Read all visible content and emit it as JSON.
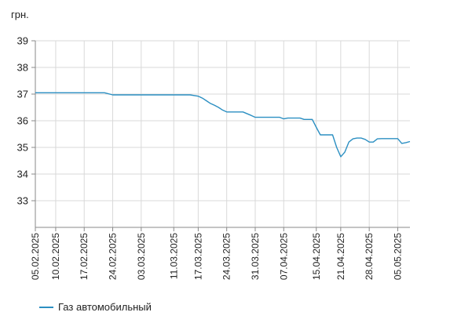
{
  "chart_data": {
    "type": "line",
    "ylabel": "грн.",
    "ylim": [
      32,
      39
    ],
    "yticks": [
      33,
      34,
      35,
      36,
      37,
      38,
      39
    ],
    "grid": true,
    "legend_position": "bottom-left",
    "series_color": "#2b8fc2",
    "x_tick_labels": [
      "05.02.2025",
      "10.02.2025",
      "17.02.2025",
      "24.02.2025",
      "03.03.2025",
      "11.03.2025",
      "17.03.2025",
      "24.03.2025",
      "31.03.2025",
      "07.04.2025",
      "15.04.2025",
      "21.04.2025",
      "28.04.2025",
      "05.05.2025"
    ],
    "series": [
      {
        "name": "Газ автомобильный",
        "points": [
          [
            "05.02.2025",
            37.05
          ],
          [
            "08.02.2025",
            37.05
          ],
          [
            "12.02.2025",
            37.05
          ],
          [
            "16.02.2025",
            37.05
          ],
          [
            "20.02.2025",
            37.05
          ],
          [
            "22.02.2025",
            37.05
          ],
          [
            "24.02.2025",
            36.97
          ],
          [
            "28.02.2025",
            36.97
          ],
          [
            "03.03.2025",
            36.97
          ],
          [
            "07.03.2025",
            36.97
          ],
          [
            "11.03.2025",
            36.97
          ],
          [
            "15.03.2025",
            36.97
          ],
          [
            "17.03.2025",
            36.92
          ],
          [
            "18.03.2025",
            36.85
          ],
          [
            "19.03.2025",
            36.75
          ],
          [
            "20.03.2025",
            36.65
          ],
          [
            "21.03.2025",
            36.58
          ],
          [
            "22.03.2025",
            36.5
          ],
          [
            "23.03.2025",
            36.4
          ],
          [
            "24.03.2025",
            36.33
          ],
          [
            "26.03.2025",
            36.33
          ],
          [
            "28.03.2025",
            36.33
          ],
          [
            "30.03.2025",
            36.2
          ],
          [
            "31.03.2025",
            36.13
          ],
          [
            "03.04.2025",
            36.13
          ],
          [
            "06.04.2025",
            36.13
          ],
          [
            "07.04.2025",
            36.07
          ],
          [
            "08.04.2025",
            36.1
          ],
          [
            "11.04.2025",
            36.1
          ],
          [
            "12.04.2025",
            36.05
          ],
          [
            "14.04.2025",
            36.05
          ],
          [
            "15.04.2025",
            35.75
          ],
          [
            "16.04.2025",
            35.47
          ],
          [
            "18.04.2025",
            35.47
          ],
          [
            "19.04.2025",
            35.47
          ],
          [
            "20.04.2025",
            35.0
          ],
          [
            "21.04.2025",
            34.65
          ],
          [
            "22.04.2025",
            34.82
          ],
          [
            "23.04.2025",
            35.2
          ],
          [
            "24.04.2025",
            35.32
          ],
          [
            "25.04.2025",
            35.35
          ],
          [
            "26.04.2025",
            35.35
          ],
          [
            "27.04.2025",
            35.3
          ],
          [
            "28.04.2025",
            35.2
          ],
          [
            "29.04.2025",
            35.2
          ],
          [
            "30.04.2025",
            35.32
          ],
          [
            "01.05.2025",
            35.33
          ],
          [
            "02.05.2025",
            35.33
          ],
          [
            "03.05.2025",
            35.33
          ],
          [
            "04.05.2025",
            35.33
          ],
          [
            "05.05.2025",
            35.33
          ],
          [
            "06.05.2025",
            35.15
          ],
          [
            "07.05.2025",
            35.18
          ],
          [
            "08.05.2025",
            35.22
          ]
        ]
      }
    ]
  },
  "legend": {
    "label": "Газ автомобильный"
  },
  "unit_label": "грн."
}
